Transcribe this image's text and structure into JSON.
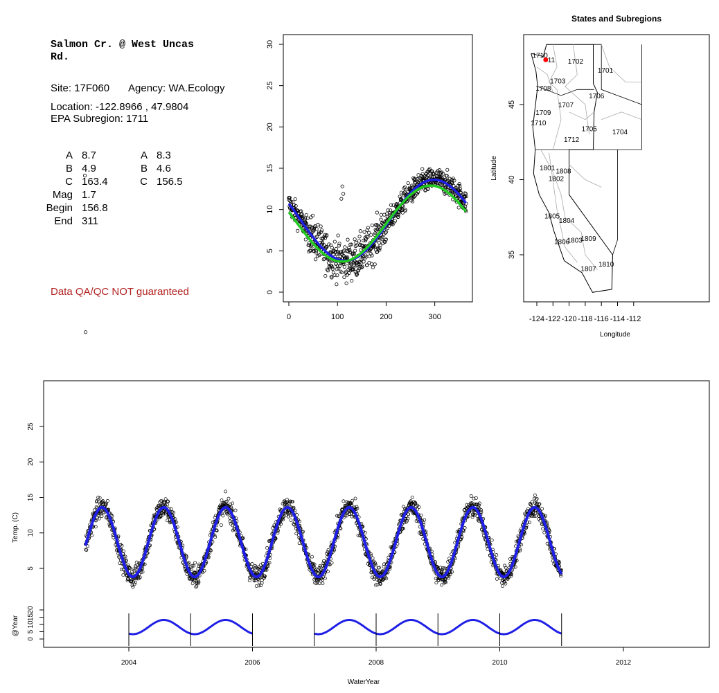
{
  "site": {
    "title_line1": "Salmon Cr. @ West Uncas",
    "title_line2": "Rd.",
    "site_label": "Site: 17F060",
    "agency_label": "Agency: WA.Ecology",
    "location": "Location: -122.8966 , 47.9804",
    "subregion": "EPA Subregion: 1711",
    "qa_note": "Data QA/QC NOT guaranteed"
  },
  "params_left": [
    {
      "label": "A",
      "value": "8.7"
    },
    {
      "label": "B",
      "value": "4.9"
    },
    {
      "label": "C",
      "value": "163.4"
    },
    {
      "label": "Mag",
      "value": "1.7"
    },
    {
      "label": "Begin",
      "value": "156.8"
    },
    {
      "label": "End",
      "value": "311"
    }
  ],
  "params_right": [
    {
      "label": "A",
      "value": "8.3"
    },
    {
      "label": "B",
      "value": "4.6"
    },
    {
      "label": "C",
      "value": "156.5"
    }
  ],
  "colors": {
    "fit_blue": "#1f1fe6",
    "fit_green": "#22cc22",
    "points": "#000000",
    "map_marker": "#ff0000",
    "boundary_grey": "#aaaaaa",
    "qa_text": "#b22222"
  },
  "chart_data": [
    {
      "type": "scatter",
      "name": "seasonal",
      "title": "",
      "xlabel": "",
      "ylabel": "",
      "xlim": [
        0,
        366
      ],
      "ylim": [
        0,
        31
      ],
      "xticks": [
        0,
        100,
        200,
        300
      ],
      "yticks": [
        0,
        5,
        10,
        15,
        20,
        25,
        30
      ],
      "fit_curves": [
        {
          "color": "blue",
          "A": 8.7,
          "B": 4.9,
          "C": 163.4
        },
        {
          "color": "green",
          "A": 8.3,
          "B": 4.6,
          "C": 156.5
        }
      ],
      "outlier_points": [
        {
          "x": 110,
          "y": 12.8
        },
        {
          "x": 108,
          "y": 11.3
        },
        {
          "x": 112,
          "y": 11.9
        }
      ]
    },
    {
      "type": "map",
      "title": "States and Subregions",
      "xlabel": "Longitude",
      "ylabel": "Latitude",
      "xlim": [
        -125.5,
        -110.8
      ],
      "ylim": [
        32.2,
        49.7
      ],
      "xticks": [
        -124,
        -122,
        -120,
        -118,
        -116,
        -114,
        -112
      ],
      "yticks": [
        35,
        40,
        45
      ],
      "marker": {
        "lon": -122.8966,
        "lat": 47.9804
      },
      "region_labels": [
        {
          "text": "1702",
          "lon": -119.2,
          "lat": 47.9
        },
        {
          "text": "1701",
          "lon": -115.5,
          "lat": 47.3
        },
        {
          "text": "1703",
          "lon": -121.4,
          "lat": 46.6
        },
        {
          "text": "1708",
          "lon": -123.2,
          "lat": 46.1
        },
        {
          "text": "1706",
          "lon": -116.6,
          "lat": 45.6
        },
        {
          "text": "1707",
          "lon": -120.4,
          "lat": 45.0
        },
        {
          "text": "1709",
          "lon": -123.2,
          "lat": 44.5
        },
        {
          "text": "1710",
          "lon": -123.8,
          "lat": 43.8
        },
        {
          "text": "1705",
          "lon": -117.5,
          "lat": 43.4
        },
        {
          "text": "1704",
          "lon": -113.7,
          "lat": 43.2
        },
        {
          "text": "1712",
          "lon": -119.7,
          "lat": 42.7
        },
        {
          "text": "1801",
          "lon": -122.7,
          "lat": 40.8
        },
        {
          "text": "1808",
          "lon": -120.7,
          "lat": 40.6
        },
        {
          "text": "1802",
          "lon": -121.6,
          "lat": 40.1
        },
        {
          "text": "1805",
          "lon": -122.1,
          "lat": 37.6
        },
        {
          "text": "1804",
          "lon": -120.3,
          "lat": 37.3
        },
        {
          "text": "1809",
          "lon": -117.6,
          "lat": 36.1
        },
        {
          "text": "1803",
          "lon": -119.3,
          "lat": 36.0
        },
        {
          "text": "1806",
          "lon": -120.9,
          "lat": 35.9
        },
        {
          "text": "1810",
          "lon": -115.4,
          "lat": 34.4
        },
        {
          "text": "1807",
          "lon": -117.6,
          "lat": 34.1
        },
        {
          "text": "1710",
          "lon": -123.6,
          "lat": 48.3
        },
        {
          "text": "11",
          "lon": -122.2,
          "lat": 48.0
        }
      ]
    },
    {
      "type": "line",
      "name": "time-series",
      "title": "",
      "xlabel": "WaterYear",
      "ylabel": "Temp. (C)",
      "xlim": [
        2002.6,
        2013.4
      ],
      "ylim": [
        -3,
        30
      ],
      "xticks": [
        2004,
        2006,
        2008,
        2010,
        2012
      ],
      "yticks": [
        5,
        10,
        15,
        20,
        25
      ],
      "start": 2003.3,
      "end": 2011.0,
      "sub_ylabel": "@Year",
      "sub_yticks": [
        0,
        5,
        10,
        15,
        20
      ],
      "sub_year_breaks": [
        2004,
        2005,
        2006,
        2007,
        2008,
        2009,
        2010,
        2011
      ],
      "sub_segments": [
        [
          2004.0,
          2006.0
        ],
        [
          2007.0,
          2011.0
        ]
      ],
      "top_outlier": {
        "x": 2003.3,
        "y": 30.5
      }
    }
  ]
}
